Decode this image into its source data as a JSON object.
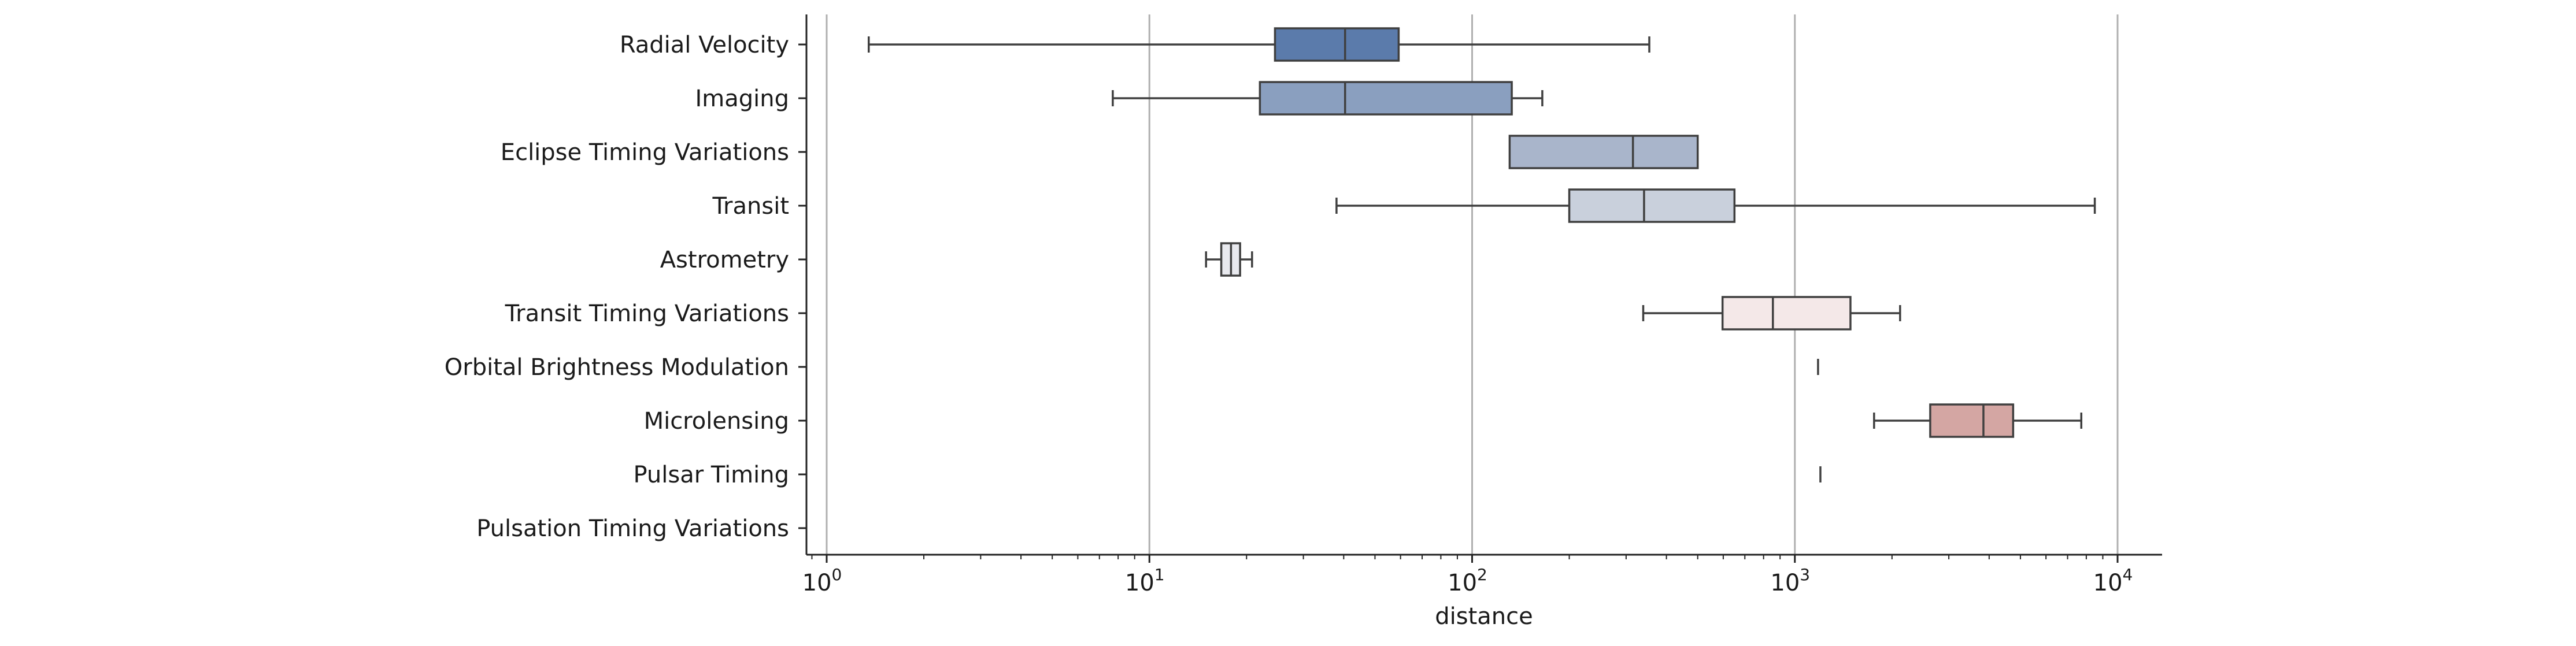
{
  "chart_data": {
    "type": "boxplot",
    "title": "",
    "xlabel": "distance",
    "ylabel": "",
    "x_scale": "log",
    "x_range": [
      0.9,
      13.5
    ],
    "grid": "vertical gridlines at major ticks",
    "x_ticks": [
      {
        "value": 1,
        "label": "10",
        "exp": "0"
      },
      {
        "value": 10,
        "label": "10",
        "exp": "1"
      },
      {
        "value": 100,
        "label": "10",
        "exp": "2"
      },
      {
        "value": 1000,
        "label": "10",
        "exp": "3"
      },
      {
        "value": 10000,
        "label": "10",
        "exp": "4"
      }
    ],
    "categories": [
      "Radial Velocity",
      "Imaging",
      "Eclipse Timing Variations",
      "Transit",
      "Astrometry",
      "Transit Timing Variations",
      "Orbital Brightness Modulation",
      "Microlensing",
      "Pulsar Timing",
      "Pulsation Timing Variations"
    ],
    "boxes": [
      {
        "category": "Radial Velocity",
        "whisker_low": 1.35,
        "q1": 24.5,
        "median": 40.4,
        "q3": 59.2,
        "whisker_high": 354,
        "color": "#5b7bab"
      },
      {
        "category": "Imaging",
        "whisker_low": 7.7,
        "q1": 22.0,
        "median": 40.4,
        "q3": 132.7,
        "whisker_high": 165,
        "color": "#8a9fbf"
      },
      {
        "category": "Eclipse Timing Variations",
        "whisker_low": null,
        "q1": 130.7,
        "median": 315,
        "q3": 500,
        "whisker_high": null,
        "color": "#a9b5cb"
      },
      {
        "category": "Transit",
        "whisker_low": 38.0,
        "q1": 200,
        "median": 341,
        "q3": 650,
        "whisker_high": 8500,
        "color": "#c9d0dc"
      },
      {
        "category": "Astrometry",
        "whisker_low": 14.98,
        "q1": 16.7,
        "median": 17.9,
        "q3": 19.1,
        "whisker_high": 20.8,
        "color": "#e8e9ee"
      },
      {
        "category": "Transit Timing Variations",
        "whisker_low": 339,
        "q1": 597,
        "median": 855,
        "q3": 1487,
        "whisker_high": 2119,
        "color": "#f4e8e8"
      },
      {
        "category": "Orbital Brightness Modulation",
        "whisker_low": 1180,
        "q1": 1180,
        "median": 1180,
        "q3": 1180,
        "whisker_high": 1180,
        "color": "#efdcdc"
      },
      {
        "category": "Microlensing",
        "whisker_low": 1760,
        "q1": 2627,
        "median": 3840,
        "q3": 4747,
        "whisker_high": 7720,
        "color": "#d4a6a3"
      },
      {
        "category": "Pulsar Timing",
        "whisker_low": 1200,
        "q1": 1200,
        "median": 1200,
        "q3": 1200,
        "whisker_high": 1200,
        "color": "#c98e8b"
      },
      {
        "category": "Pulsation Timing Variations",
        "whisker_low": null,
        "q1": null,
        "median": null,
        "q3": null,
        "whisker_high": null,
        "color": "#c07a77"
      }
    ]
  }
}
